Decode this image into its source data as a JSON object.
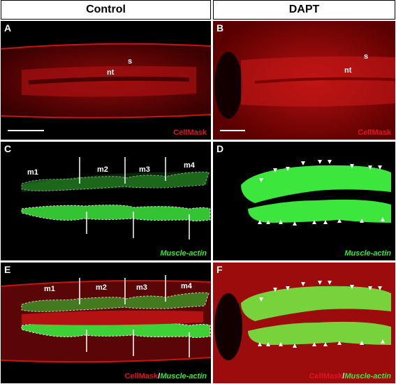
{
  "headers": {
    "left": "Control",
    "right": "DAPT"
  },
  "panels": {
    "A": {
      "letter": "A",
      "stain": "CellMask",
      "labels": {
        "s": "s",
        "nt": "nt"
      }
    },
    "B": {
      "letter": "B",
      "stain": "CellMask",
      "labels": {
        "s": "s",
        "nt": "nt"
      }
    },
    "C": {
      "letter": "C",
      "stain": "Muscle-actin",
      "segments": [
        "m1",
        "m2",
        "m3",
        "m4"
      ]
    },
    "D": {
      "letter": "D",
      "stain": "Muscle-actin"
    },
    "E": {
      "letter": "E",
      "stain_a": "CellMask",
      "sep": "/",
      "stain_b": "Muscle-actin",
      "segments": [
        "m1",
        "m2",
        "m3",
        "m4"
      ]
    },
    "F": {
      "letter": "F",
      "stain_a": "CellMask",
      "sep": "/",
      "stain_b": "Muscle-actin"
    }
  },
  "colors": {
    "cellmask": "#e0141e",
    "muscle_actin": "#3ce63c",
    "background": "#000000"
  }
}
